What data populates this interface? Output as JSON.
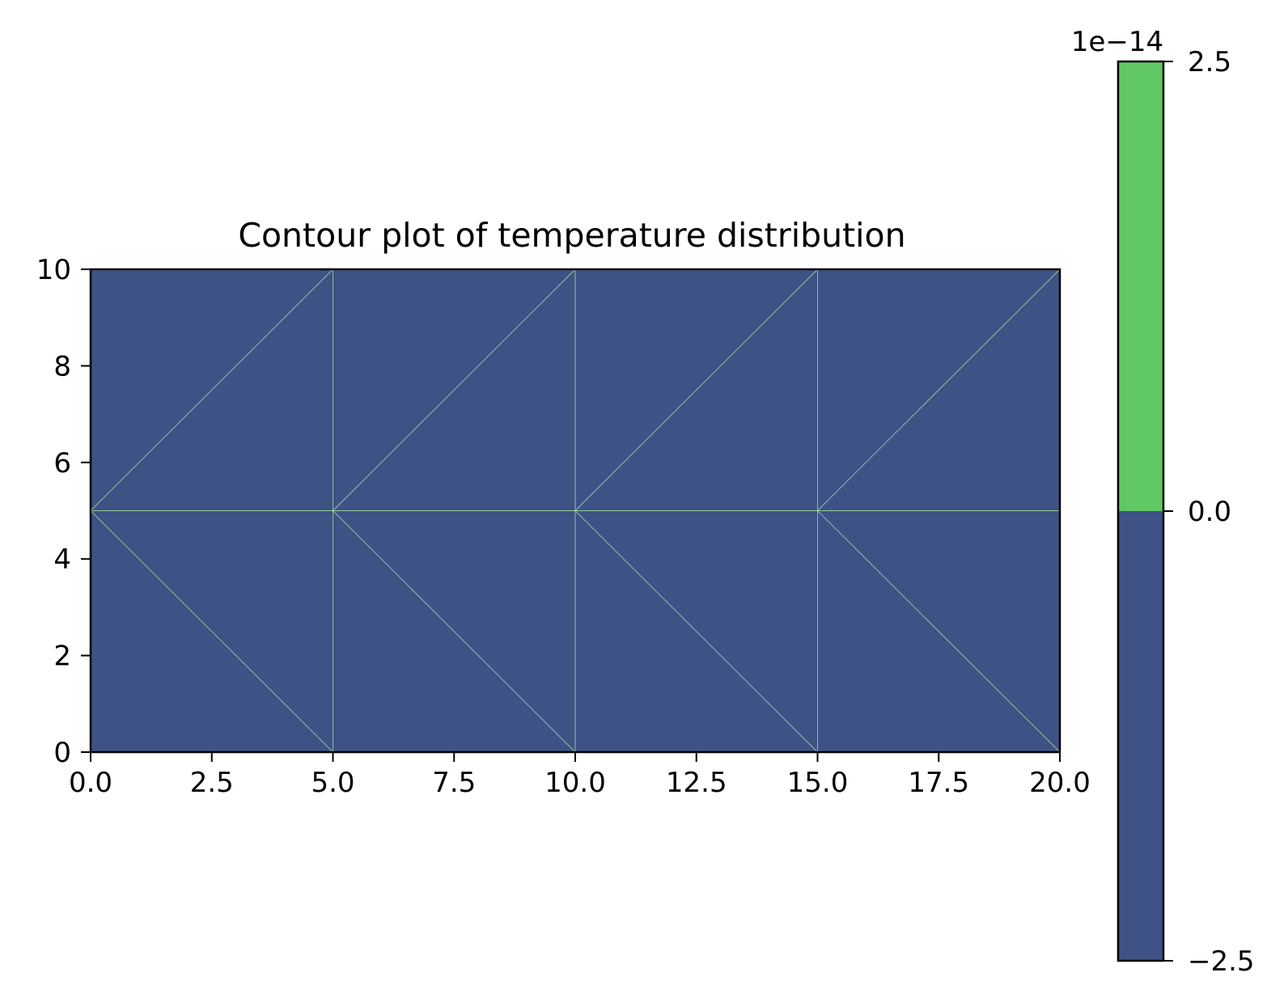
{
  "chart_data": {
    "type": "heatmap",
    "title": "Contour plot of temperature distribution",
    "xlabel": "",
    "ylabel": "",
    "xlim": [
      0,
      20
    ],
    "ylim": [
      0,
      10
    ],
    "x_ticks": [
      "0.0",
      "2.5",
      "5.0",
      "7.5",
      "10.0",
      "12.5",
      "15.0",
      "17.5",
      "20.0"
    ],
    "y_ticks": [
      "0",
      "2",
      "4",
      "6",
      "8",
      "10"
    ],
    "mesh_nodes_x": [
      0,
      5,
      10,
      15,
      20
    ],
    "mesh_nodes_y": [
      0,
      5,
      10
    ],
    "field_level": [
      0,
      2.5e-14
    ],
    "colorbar": {
      "offset_label": "1e−14",
      "levels": [
        -2.5,
        0.0,
        2.5
      ],
      "tick_labels": [
        "2.5",
        "0.0",
        "−2.5"
      ],
      "bands": [
        {
          "from": -2.5,
          "to": 0.0,
          "color": "#3e5286"
        },
        {
          "from": 0.0,
          "to": 2.5,
          "color": "#60c863"
        }
      ]
    },
    "grid": false,
    "mesh_line_color": "#a6e0a2"
  }
}
